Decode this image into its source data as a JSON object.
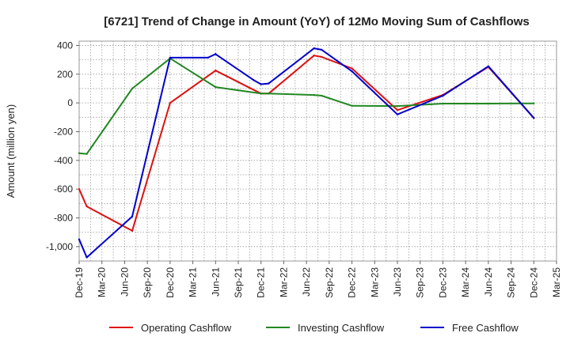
{
  "chart_data": {
    "type": "line",
    "title": "[6721]  Trend of Change in Amount (YoY) of 12Mo Moving Sum of Cashflows",
    "xlabel": "",
    "ylabel": "Amount (million yen)",
    "ylim": [
      -1100,
      430
    ],
    "yticks": [
      400,
      200,
      0,
      -200,
      -400,
      -600,
      -800,
      -1000
    ],
    "ytick_labels": [
      "400",
      "200",
      "0",
      "-200",
      "-400",
      "-600",
      "-800",
      "-1,000"
    ],
    "xticks": [
      0,
      3,
      6,
      9,
      12,
      15,
      18,
      21,
      24,
      27,
      30,
      33,
      36,
      39,
      42,
      45,
      48,
      51,
      54,
      57,
      60,
      63
    ],
    "xtick_labels": [
      "Dec-19",
      "Mar-20",
      "Jun-20",
      "Sep-20",
      "Dec-20",
      "Mar-21",
      "Jun-21",
      "Sep-21",
      "Dec-21",
      "Mar-22",
      "Jun-22",
      "Sep-22",
      "Dec-22",
      "Mar-23",
      "Jun-23",
      "Sep-23",
      "Dec-23",
      "Mar-24",
      "Jun-24",
      "Sep-24",
      "Dec-24",
      "Mar-25"
    ],
    "grid": true,
    "legend_position": "bottom",
    "series": [
      {
        "name": "Operating Cashflow",
        "color": "#dd1111",
        "x": [
          0,
          1,
          7,
          12,
          18,
          24,
          25,
          31,
          32,
          36,
          42,
          48,
          54,
          60
        ],
        "values": [
          -600,
          -720,
          -890,
          0,
          225,
          65,
          65,
          330,
          320,
          240,
          -50,
          55,
          250,
          -105
        ]
      },
      {
        "name": "Investing Cashflow",
        "color": "#228822",
        "x": [
          0,
          1,
          7,
          12,
          18,
          24,
          25,
          31,
          32,
          36,
          42,
          48,
          54,
          60
        ],
        "values": [
          -350,
          -355,
          100,
          310,
          110,
          65,
          65,
          55,
          50,
          -20,
          -22,
          -5,
          -5,
          -3
        ]
      },
      {
        "name": "Free Cashflow",
        "color": "#0000cc",
        "x": [
          0,
          1,
          7,
          12,
          17,
          18,
          23,
          24,
          25,
          31,
          32,
          36,
          42,
          48,
          54,
          60
        ],
        "values": [
          -950,
          -1075,
          -790,
          315,
          315,
          340,
          160,
          130,
          135,
          380,
          370,
          220,
          -80,
          50,
          255,
          -105
        ]
      }
    ]
  }
}
